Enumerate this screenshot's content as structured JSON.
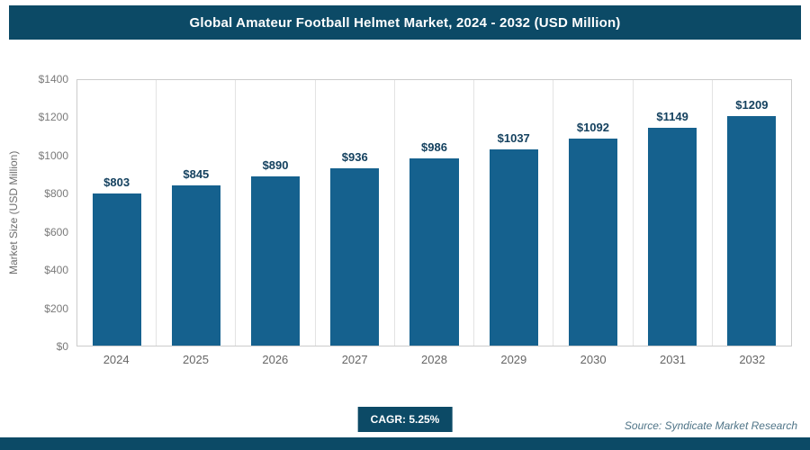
{
  "header": {
    "title": "Global Amateur Football Helmet Market, 2024 - 2032 (USD Million)"
  },
  "chart_data": {
    "type": "bar",
    "title": "Global Amateur Football Helmet Market, 2024 - 2032 (USD Million)",
    "categories": [
      "2024",
      "2025",
      "2026",
      "2027",
      "2028",
      "2029",
      "2030",
      "2031",
      "2032"
    ],
    "values": [
      803,
      845,
      890,
      936,
      986,
      1037,
      1092,
      1149,
      1209
    ],
    "value_labels": [
      "$803",
      "$845",
      "$890",
      "$936",
      "$986",
      "$1037",
      "$1092",
      "$1149",
      "$1209"
    ],
    "xlabel": "",
    "ylabel": "Market Size (USD Million)",
    "ylim": [
      0,
      1400
    ],
    "ytick_step": 200,
    "ytick_labels": [
      "$0",
      "$200",
      "$400",
      "$600",
      "$800",
      "$1000",
      "$1200",
      "$1400"
    ],
    "grid": "vertical column separators, no horizontal gridlines",
    "legend": "none",
    "bar_color": "#15618e"
  },
  "footer": {
    "cagr_label": "CAGR: 5.25%",
    "source": "Source: Syndicate Market Research"
  },
  "colors": {
    "header_bg": "#0c4a66",
    "bar": "#15618e",
    "value_label_text": "#14415f",
    "axis_text": "#7a7a7a",
    "plot_border": "#cccccc",
    "gridline": "#e3e3e3",
    "badge_bg": "#0c4a66",
    "source_text": "#4f7487",
    "bottom_strip": "#0c4a66"
  }
}
